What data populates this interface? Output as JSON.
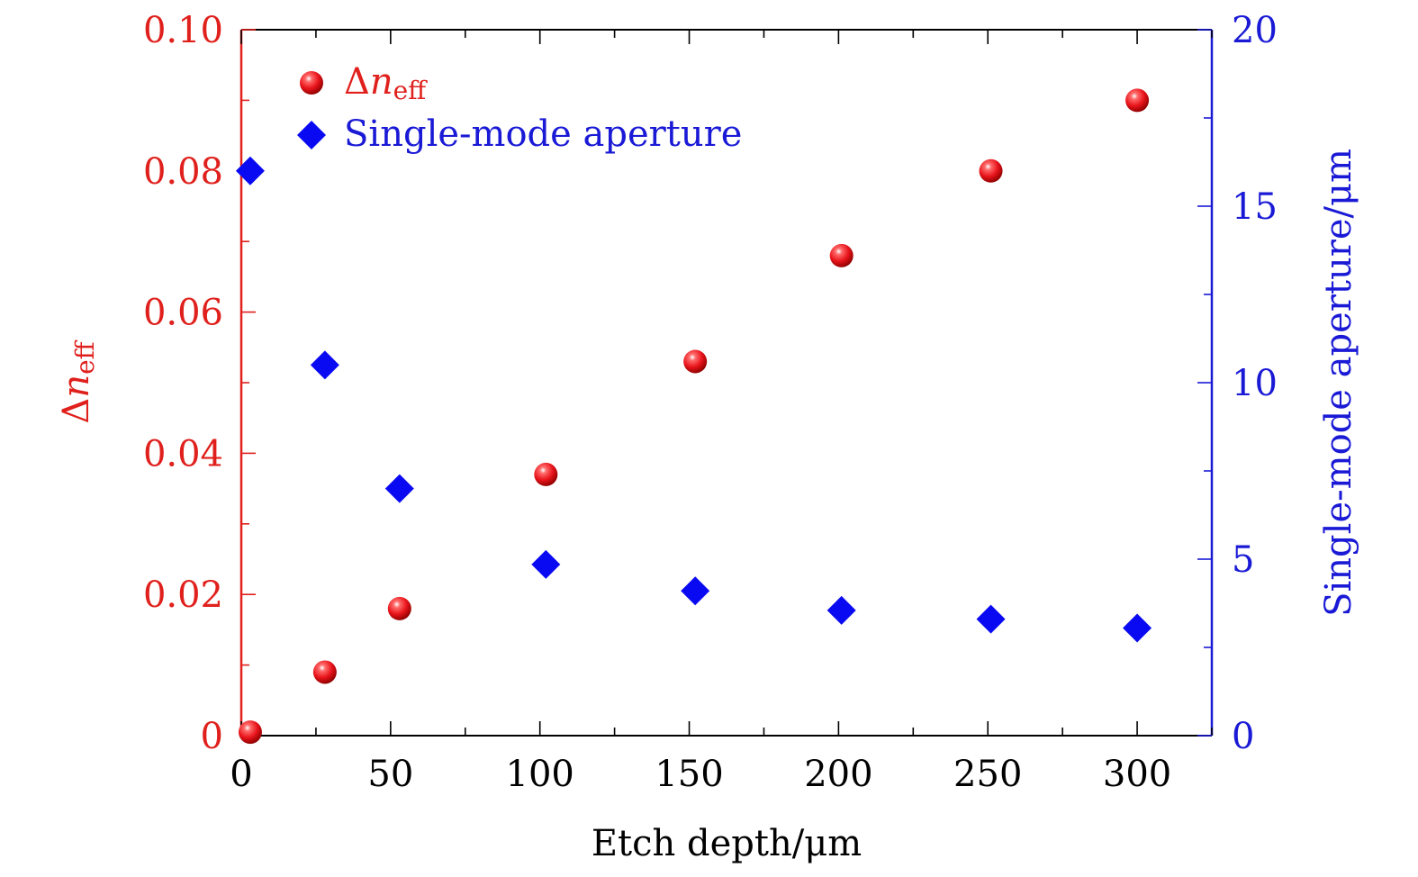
{
  "chart_data": {
    "type": "scatter",
    "xlabel": "Etch depth/μm",
    "ylabel_left": {
      "base": "Δ",
      "var": "n",
      "sub": "eff"
    },
    "ylabel_right": "Single-mode aperture/μm",
    "xlim": [
      0,
      325
    ],
    "xticks": [
      0,
      50,
      100,
      150,
      200,
      250,
      300
    ],
    "ylim_left": [
      0,
      0.1
    ],
    "yticks_left": [
      "0",
      "0.02",
      "0.04",
      "0.06",
      "0.08",
      "0.10"
    ],
    "ylim_right": [
      0,
      20
    ],
    "yticks_right": [
      "0",
      "5",
      "10",
      "15",
      "20"
    ],
    "legend_position": "top-left",
    "colors": {
      "left": "#e0201c",
      "right": "#1a1ad6",
      "series1": "#e8141b",
      "series2": "#0a0af2"
    },
    "series": [
      {
        "name": {
          "base": "Δ",
          "var": "n",
          "sub": "eff"
        },
        "axis": "left",
        "marker": "sphere",
        "x": [
          3,
          28,
          53,
          102,
          152,
          201,
          251,
          300
        ],
        "y": [
          0.0005,
          0.009,
          0.018,
          0.037,
          0.053,
          0.068,
          0.08,
          0.09
        ]
      },
      {
        "name": "Single-mode aperture",
        "axis": "right",
        "marker": "diamond",
        "x": [
          3,
          28,
          53,
          102,
          152,
          201,
          251,
          300
        ],
        "y": [
          16.0,
          10.5,
          7.0,
          4.85,
          4.1,
          3.55,
          3.3,
          3.05
        ]
      }
    ]
  }
}
